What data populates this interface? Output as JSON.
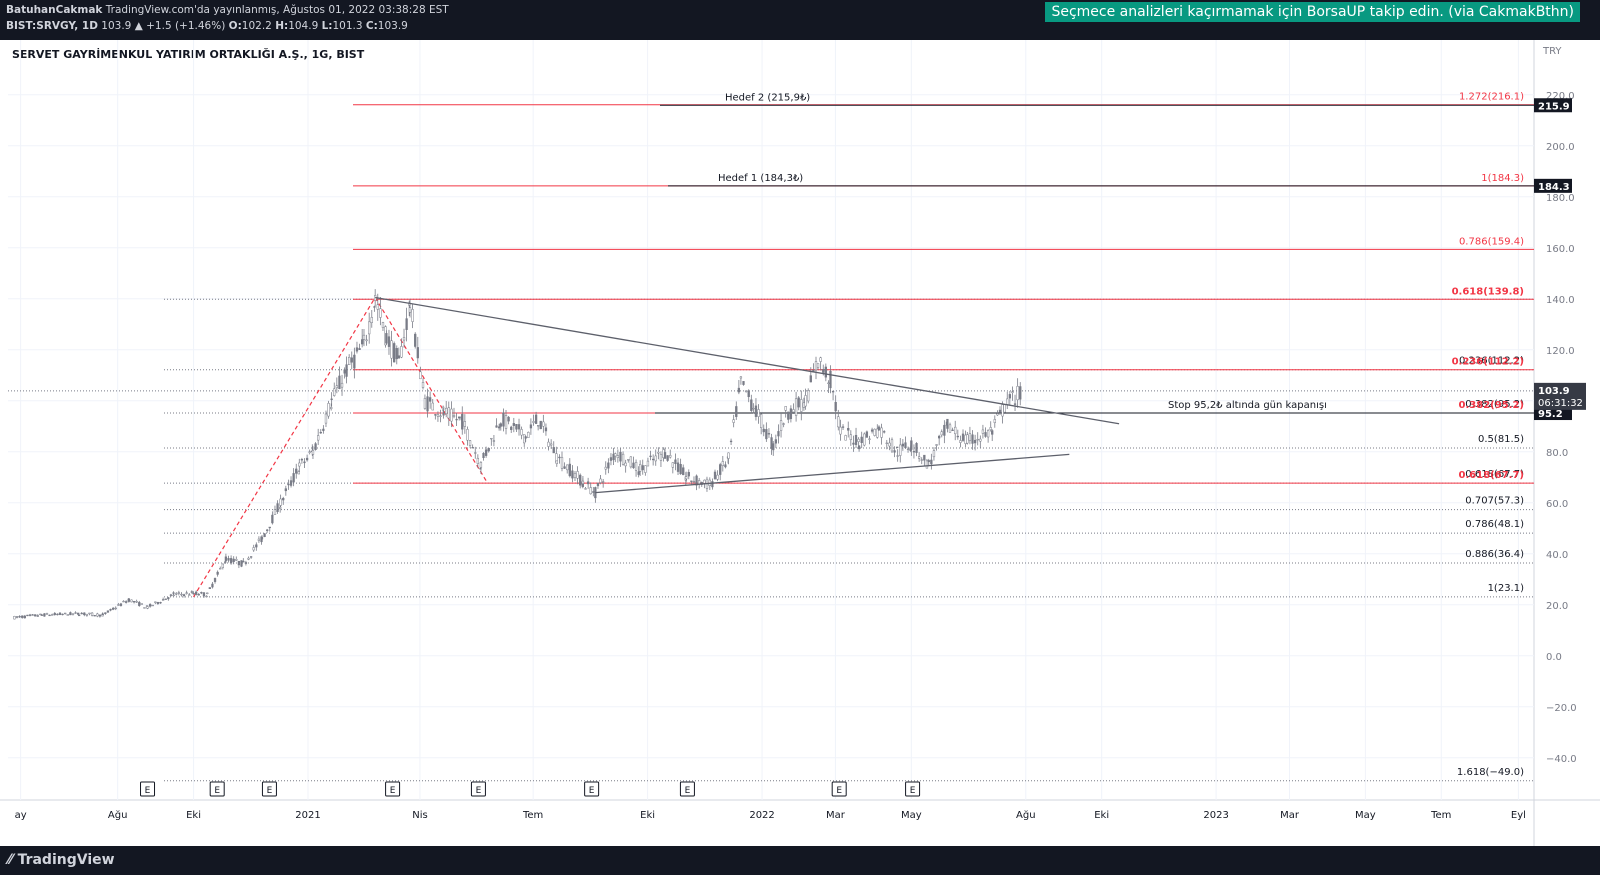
{
  "header": {
    "author": "BatuhanCakmak",
    "published": "TradingView.com'da yayınlanmış, Ağustos 01, 2022 03:38:28 EST",
    "symbol_line": "BIST:SRVGY, 1D",
    "last": "103.9",
    "change": "+1.5 (+1.46%)",
    "open_label": "O:",
    "open": "102.2",
    "high_label": "H:",
    "high": "104.9",
    "low_label": "L:",
    "low": "101.3",
    "close_label": "C:",
    "close": "103.9",
    "banner": "Seçmece analizleri kaçırmamak için BorsaUP takip edin. (via CakmakBthn)"
  },
  "footer": {
    "logo": "TradingView",
    "logo_icon": "tradingview-logo-icon"
  },
  "colors": {
    "fib_red": "#f23645",
    "fib_gray": "#787b86",
    "candles": "#787b86",
    "trend": "#5d606b",
    "highlight_bg": "#131722"
  },
  "chart_data": {
    "type": "candlestick",
    "title": "SERVET GAYRİMENKUL YATIRIM ORTAKLIĞI A.Ş., 1G, BIST",
    "currency": "TRY",
    "ylim": [
      -50,
      225
    ],
    "y_ticks": [
      220.0,
      200.0,
      180.0,
      160.0,
      140.0,
      120.0,
      100.0,
      80.0,
      60.0,
      40.0,
      20.0,
      0.0,
      -20.0,
      -40.0
    ],
    "y_tick_labels": [
      "220.0",
      "200.0",
      "180.0",
      "160.0",
      "140.0",
      "120.0",
      "100.0",
      "80.0",
      "60.0",
      "40.0",
      "20.0",
      "0.0",
      "−20.0",
      "−40.0"
    ],
    "x_ticks": [
      {
        "date": "2020-05-15",
        "label": "ay"
      },
      {
        "date": "2020-08-01",
        "label": "Ağu"
      },
      {
        "date": "2020-10-01",
        "label": "Eki"
      },
      {
        "date": "2021-01-01",
        "label": "2021"
      },
      {
        "date": "2021-04-01",
        "label": "Nis"
      },
      {
        "date": "2021-07-01",
        "label": "Tem"
      },
      {
        "date": "2021-10-01",
        "label": "Eki"
      },
      {
        "date": "2022-01-01",
        "label": "2022"
      },
      {
        "date": "2022-03-01",
        "label": "Mar"
      },
      {
        "date": "2022-05-01",
        "label": "May"
      },
      {
        "date": "2022-08-01",
        "label": "Ağu"
      },
      {
        "date": "2022-10-01",
        "label": "Eki"
      },
      {
        "date": "2023-01-01",
        "label": "2023"
      },
      {
        "date": "2023-03-01",
        "label": "Mar"
      },
      {
        "date": "2023-05-01",
        "label": "May"
      },
      {
        "date": "2023-07-01",
        "label": "Tem"
      },
      {
        "date": "2023-09-01",
        "label": "Eyl"
      }
    ],
    "earnings_markers": [
      "2020-08-25",
      "2020-10-20",
      "2020-12-01",
      "2021-03-10",
      "2021-05-18",
      "2021-08-17",
      "2021-11-02",
      "2022-03-04",
      "2022-05-02"
    ],
    "earnings_label": "E",
    "price_path": [
      [
        "2020-05-10",
        15
      ],
      [
        "2020-06-01",
        16
      ],
      [
        "2020-07-01",
        16.5
      ],
      [
        "2020-07-20",
        16
      ],
      [
        "2020-08-10",
        22
      ],
      [
        "2020-08-25",
        19
      ],
      [
        "2020-09-15",
        24
      ],
      [
        "2020-10-01",
        24.5
      ],
      [
        "2020-10-12",
        24
      ],
      [
        "2020-10-27",
        38
      ],
      [
        "2020-11-10",
        36
      ],
      [
        "2020-11-25",
        46
      ],
      [
        "2020-12-10",
        60
      ],
      [
        "2020-12-25",
        74
      ],
      [
        "2021-01-05",
        80
      ],
      [
        "2021-01-20",
        100
      ],
      [
        "2021-02-01",
        112
      ],
      [
        "2021-02-15",
        122
      ],
      [
        "2021-02-24",
        140
      ],
      [
        "2021-03-05",
        125
      ],
      [
        "2021-03-15",
        115
      ],
      [
        "2021-03-24",
        138
      ],
      [
        "2021-04-05",
        100
      ],
      [
        "2021-04-20",
        95
      ],
      [
        "2021-05-05",
        92
      ],
      [
        "2021-05-20",
        75
      ],
      [
        "2021-06-05",
        93
      ],
      [
        "2021-06-25",
        86
      ],
      [
        "2021-07-05",
        93
      ],
      [
        "2021-07-20",
        78
      ],
      [
        "2021-08-10",
        68
      ],
      [
        "2021-08-20",
        64
      ],
      [
        "2021-09-05",
        80
      ],
      [
        "2021-09-25",
        73
      ],
      [
        "2021-10-15",
        80
      ],
      [
        "2021-11-01",
        70
      ],
      [
        "2021-11-20",
        67
      ],
      [
        "2021-12-05",
        77
      ],
      [
        "2021-12-15",
        107
      ],
      [
        "2021-12-25",
        98
      ],
      [
        "2022-01-10",
        82
      ],
      [
        "2022-01-20",
        95
      ],
      [
        "2022-02-05",
        100
      ],
      [
        "2022-02-15",
        116
      ],
      [
        "2022-02-25",
        108
      ],
      [
        "2022-03-05",
        88
      ],
      [
        "2022-03-20",
        84
      ],
      [
        "2022-04-05",
        89
      ],
      [
        "2022-04-20",
        80
      ],
      [
        "2022-05-01",
        83
      ],
      [
        "2022-05-15",
        75
      ],
      [
        "2022-05-30",
        90
      ],
      [
        "2022-06-15",
        84
      ],
      [
        "2022-07-05",
        88
      ],
      [
        "2022-07-15",
        98
      ],
      [
        "2022-07-29",
        103.9
      ]
    ],
    "trendlines": [
      {
        "from": [
          "2021-02-24",
          140.5
        ],
        "to": [
          "2022-10-15",
          91
        ]
      },
      {
        "from": [
          "2021-08-20",
          64
        ],
        "to": [
          "2022-09-05",
          79
        ]
      }
    ],
    "fib_swing": {
      "from": [
        "2020-10-01",
        23.1
      ],
      "to": [
        "2021-02-24",
        140.5
      ],
      "retrace_to": [
        "2021-05-25",
        68
      ]
    },
    "fib_levels_red": [
      {
        "ratio": "1.272",
        "value": 216.1,
        "label": "1.272(216.1)"
      },
      {
        "ratio": "1",
        "value": 184.3,
        "label": "1(184.3)"
      },
      {
        "ratio": "0.786",
        "value": 159.4,
        "label": "0.786(159.4)"
      },
      {
        "ratio": "0.618",
        "value": 139.8,
        "label": "0.618(139.8)"
      },
      {
        "ratio": "0.236",
        "value": 112.2,
        "label": "0.236(112.2)"
      },
      {
        "ratio": "0.382",
        "value": 95.2,
        "label": "0.382(95.2)"
      },
      {
        "ratio": "0.618",
        "value": 67.7,
        "label": "0.618(67.7)"
      }
    ],
    "fib_levels_gray": [
      {
        "value": 139.8,
        "label": ""
      },
      {
        "value": 112.2,
        "label": "0.236(112.2)"
      },
      {
        "value": 95.2,
        "label": "0.382(95.2)"
      },
      {
        "value": 81.5,
        "label": "0.5(81.5)"
      },
      {
        "value": 67.7,
        "label": "0.618(67.7)"
      },
      {
        "value": 57.3,
        "label": "0.707(57.3)"
      },
      {
        "value": 48.1,
        "label": "0.786(48.1)"
      },
      {
        "value": 36.4,
        "label": "0.886(36.4)"
      },
      {
        "value": 23.1,
        "label": "1(23.1)"
      },
      {
        "value": -49.0,
        "label": "1.618(−49.0)"
      }
    ],
    "annotations": [
      {
        "text": "Hedef 2 (215,9₺)",
        "value": 215.9
      },
      {
        "text": "Hedef 1 (184,3₺)",
        "value": 184.3
      },
      {
        "text": "Stop 95,2₺ altında gün kapanışı",
        "value": 95.2
      }
    ],
    "price_tags": [
      {
        "value": 215.9,
        "label": "215.9"
      },
      {
        "value": 184.3,
        "label": "184.3"
      },
      {
        "value": 95.2,
        "label": "95.2"
      }
    ],
    "last_price": {
      "value": 103.9,
      "label": "103.9",
      "countdown": "06:31:32"
    }
  }
}
